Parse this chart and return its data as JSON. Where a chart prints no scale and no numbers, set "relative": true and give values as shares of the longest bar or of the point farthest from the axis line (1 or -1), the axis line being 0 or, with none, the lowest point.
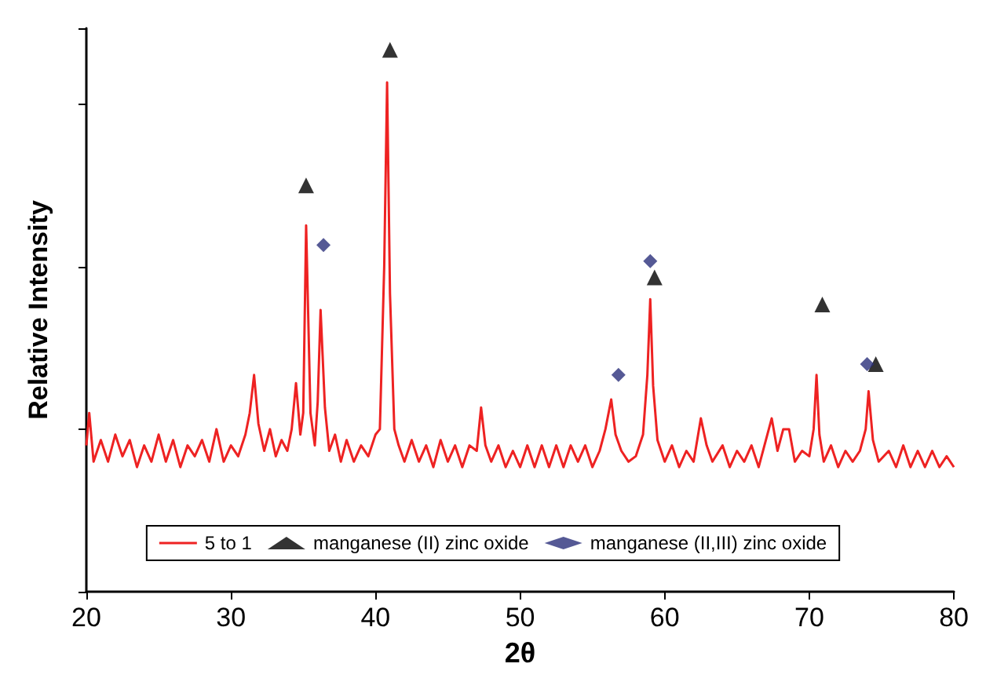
{
  "chart_data": {
    "type": "line",
    "xlabel": "2θ",
    "ylabel": "Relative Intensity",
    "relative": true,
    "xlim": [
      20,
      80
    ],
    "xticks": [
      20,
      30,
      40,
      50,
      60,
      70,
      80
    ],
    "tick_labels": "x",
    "grid": false,
    "legend": "bottom",
    "marker": "none",
    "series": [
      {
        "name": "5 to 1",
        "color": "#ee2222",
        "x": [
          20.0,
          20.2,
          20.5,
          21,
          21.5,
          22,
          22.5,
          23,
          23.5,
          24,
          24.5,
          25,
          25.5,
          26,
          26.5,
          27,
          27.5,
          28,
          28.5,
          29,
          29.5,
          30,
          30.5,
          31.0,
          31.3,
          31.6,
          31.9,
          32.3,
          32.7,
          33.1,
          33.5,
          33.9,
          34.2,
          34.5,
          34.8,
          35.0,
          35.2,
          35.5,
          35.8,
          36.0,
          36.2,
          36.5,
          36.8,
          37.2,
          37.6,
          38,
          38.5,
          39,
          39.5,
          40.0,
          40.3,
          40.6,
          40.8,
          41.0,
          41.3,
          41.6,
          42,
          42.5,
          43,
          43.5,
          44,
          44.5,
          45,
          45.5,
          46,
          46.5,
          47.0,
          47.3,
          47.6,
          48,
          48.5,
          49,
          49.5,
          50,
          50.5,
          51,
          51.5,
          52,
          52.5,
          53,
          53.5,
          54,
          54.5,
          55,
          55.5,
          55.9,
          56.3,
          56.6,
          57,
          57.5,
          58,
          58.5,
          58.8,
          59.0,
          59.2,
          59.5,
          60,
          60.5,
          61,
          61.5,
          62,
          62.5,
          62.9,
          63.3,
          64,
          64.5,
          65,
          65.5,
          66,
          66.5,
          67.0,
          67.4,
          67.8,
          68.2,
          68.6,
          69,
          69.5,
          70,
          70.3,
          70.5,
          70.7,
          71,
          71.5,
          72,
          72.5,
          73,
          73.5,
          73.9,
          74.1,
          74.4,
          74.8,
          75.5,
          76,
          76.5,
          77,
          77.5,
          78,
          78.5,
          79,
          79.5,
          80
        ],
        "values": [
          0.27,
          0.33,
          0.24,
          0.28,
          0.24,
          0.29,
          0.25,
          0.28,
          0.23,
          0.27,
          0.24,
          0.29,
          0.24,
          0.28,
          0.23,
          0.27,
          0.25,
          0.28,
          0.24,
          0.3,
          0.24,
          0.27,
          0.25,
          0.29,
          0.33,
          0.4,
          0.31,
          0.26,
          0.3,
          0.25,
          0.28,
          0.26,
          0.3,
          0.385,
          0.29,
          0.33,
          0.676,
          0.33,
          0.27,
          0.35,
          0.52,
          0.34,
          0.26,
          0.29,
          0.24,
          0.28,
          0.24,
          0.27,
          0.25,
          0.29,
          0.3,
          0.6,
          0.94,
          0.55,
          0.3,
          0.27,
          0.24,
          0.28,
          0.24,
          0.27,
          0.23,
          0.28,
          0.24,
          0.27,
          0.23,
          0.27,
          0.26,
          0.34,
          0.27,
          0.24,
          0.27,
          0.23,
          0.26,
          0.23,
          0.27,
          0.23,
          0.27,
          0.23,
          0.27,
          0.23,
          0.27,
          0.24,
          0.27,
          0.23,
          0.26,
          0.3,
          0.355,
          0.29,
          0.26,
          0.24,
          0.25,
          0.29,
          0.4,
          0.54,
          0.38,
          0.28,
          0.24,
          0.27,
          0.23,
          0.26,
          0.24,
          0.32,
          0.27,
          0.24,
          0.27,
          0.23,
          0.26,
          0.24,
          0.27,
          0.23,
          0.28,
          0.32,
          0.26,
          0.3,
          0.3,
          0.24,
          0.26,
          0.25,
          0.3,
          0.4,
          0.29,
          0.24,
          0.27,
          0.23,
          0.26,
          0.24,
          0.26,
          0.3,
          0.37,
          0.28,
          0.24,
          0.26,
          0.23,
          0.27,
          0.23,
          0.26,
          0.23,
          0.26,
          0.23,
          0.25,
          0.23
        ]
      },
      {
        "name": "manganese (II) zinc oxide",
        "type": "scatter",
        "marker": "triangle",
        "color": "#000000",
        "x": [
          35.2,
          41.0,
          59.3,
          70.9,
          74.6
        ],
        "values": [
          0.75,
          1.0,
          0.58,
          0.53,
          0.42
        ]
      },
      {
        "name": "manganese (II,III) zinc oxide",
        "type": "scatter",
        "marker": "diamond",
        "color": "#2b2f7a",
        "x": [
          36.4,
          56.8,
          59.0,
          74.0
        ],
        "values": [
          0.64,
          0.4,
          0.61,
          0.42
        ]
      }
    ]
  }
}
